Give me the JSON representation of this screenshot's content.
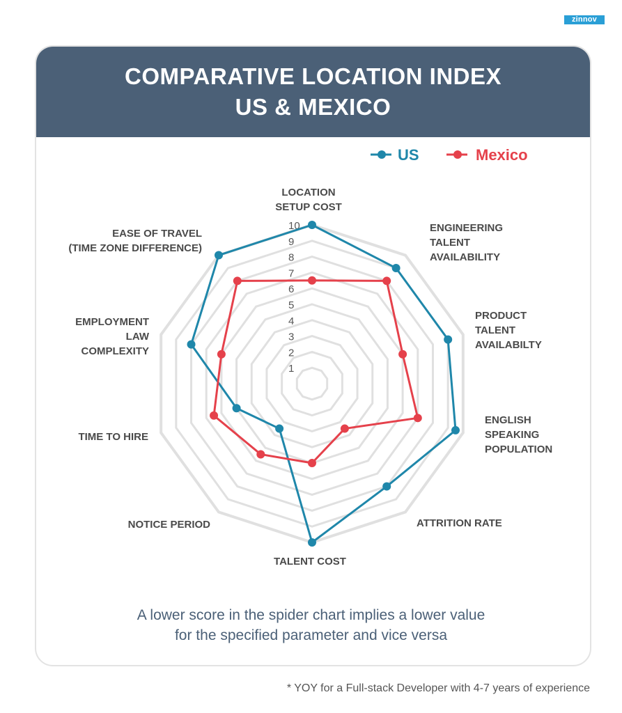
{
  "logo": {
    "text": "zinnov"
  },
  "header": {
    "title_line1": "COMPARATIVE LOCATION INDEX",
    "title_line2": "US & MEXICO"
  },
  "colors": {
    "us": "#1f87aa",
    "mexico": "#e5414b",
    "grid": "#e0e0e0",
    "label": "#4a4a4a",
    "banner": "#4b6077"
  },
  "chart_data": {
    "type": "radar",
    "title": "COMPARATIVE LOCATION INDEX US & MEXICO",
    "axes": [
      [
        "LOCATION",
        "SETUP COST"
      ],
      [
        "ENGINEERING",
        "TALENT",
        "AVAILABILITY"
      ],
      [
        "PRODUCT",
        "TALENT",
        "AVAILABILTY"
      ],
      [
        "ENGLISH",
        "SPEAKING",
        "POPULATION"
      ],
      [
        "ATTRITION RATE"
      ],
      [
        "TALENT COST"
      ],
      [
        "NOTICE PERIOD"
      ],
      [
        "TIME TO HIRE"
      ],
      [
        "EMPLOYMENT",
        "LAW",
        "COMPLEXITY"
      ],
      [
        "EASE OF TRAVEL",
        "(TIME ZONE DIFFERENCE)"
      ]
    ],
    "range": [
      0,
      10
    ],
    "ticks": [
      "1",
      "2",
      "3",
      "4",
      "5",
      "6",
      "7",
      "8",
      "9",
      "10"
    ],
    "grid": true,
    "legend_position": "top-right",
    "series": [
      {
        "name": "US",
        "values": [
          10,
          9,
          9,
          9.5,
          8,
          10,
          3.5,
          5,
          8,
          10
        ]
      },
      {
        "name": "Mexico",
        "values": [
          6.5,
          8,
          6,
          7,
          3.5,
          5,
          5.5,
          6.5,
          6,
          8
        ]
      }
    ]
  },
  "notes": {
    "line1": "A lower score in the spider chart implies a lower value",
    "line2": "for the specified parameter and vice versa"
  },
  "footnote": "* YOY for a Full-stack Developer with 4-7 years of experience"
}
